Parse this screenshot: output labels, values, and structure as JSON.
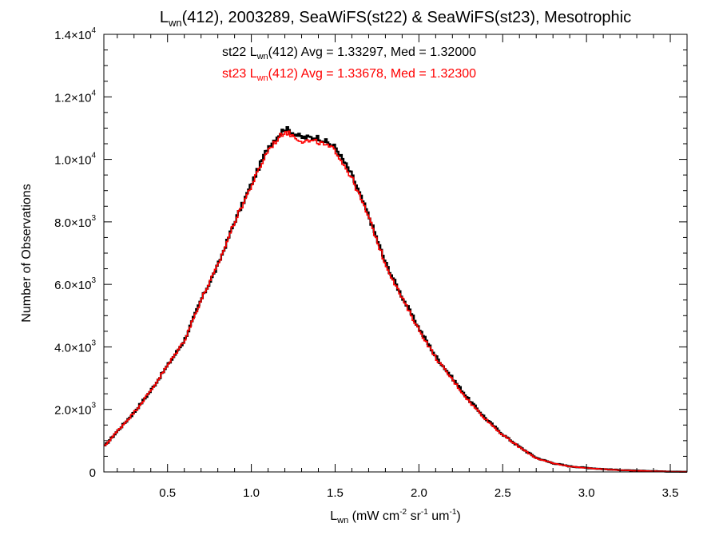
{
  "chart_data": {
    "type": "line",
    "style": "step histogram",
    "title": "(412), 2003289, SeaWiFS(st22) & SeaWiFS(st23), Mesotrophic",
    "title_prefix": "L",
    "title_sub": "wn",
    "xlabel": {
      "main": "L",
      "main_sub": "wn",
      "open": " (mW cm",
      "sup1": "-2",
      "mid": " sr",
      "sup2": "-1",
      "unit": " um",
      "sup3": "-1",
      "close": ")"
    },
    "ylabel": "Number of Observations",
    "xlim": [
      0.12,
      3.6
    ],
    "ylim": [
      0,
      14000
    ],
    "x_ticks": [
      {
        "v": 0.5,
        "label": "0.5"
      },
      {
        "v": 1.0,
        "label": "1.0"
      },
      {
        "v": 1.5,
        "label": "1.5"
      },
      {
        "v": 2.0,
        "label": "2.0"
      },
      {
        "v": 2.5,
        "label": "2.5"
      },
      {
        "v": 3.0,
        "label": "3.0"
      },
      {
        "v": 3.5,
        "label": "3.5"
      }
    ],
    "y_ticks": [
      {
        "v": 0,
        "mant": "0",
        "exp": ""
      },
      {
        "v": 2000,
        "mant": "2.0×10",
        "exp": "3"
      },
      {
        "v": 4000,
        "mant": "4.0×10",
        "exp": "3"
      },
      {
        "v": 6000,
        "mant": "6.0×10",
        "exp": "3"
      },
      {
        "v": 8000,
        "mant": "8.0×10",
        "exp": "3"
      },
      {
        "v": 10000,
        "mant": "1.0×10",
        "exp": "4"
      },
      {
        "v": 12000,
        "mant": "1.2×10",
        "exp": "4"
      },
      {
        "v": 14000,
        "mant": "1.4×10",
        "exp": "4"
      }
    ],
    "grid": false,
    "annotations": [
      {
        "pre": "st22 L",
        "sub": "wn",
        "post": "(412) Avg = 1.33297, Med = 1.32000",
        "color": "#000000"
      },
      {
        "pre": "st23 L",
        "sub": "wn",
        "post": "(412) Avg = 1.33678, Med = 1.32300",
        "color": "#ff0000"
      }
    ],
    "series": [
      {
        "id": "st22",
        "color": "#000000",
        "x": [
          0.12,
          0.2,
          0.3,
          0.4,
          0.5,
          0.6,
          0.7,
          0.8,
          0.9,
          1.0,
          1.1,
          1.2,
          1.3,
          1.4,
          1.5,
          1.6,
          1.7,
          1.8,
          1.9,
          2.0,
          2.1,
          2.2,
          2.3,
          2.4,
          2.5,
          2.6,
          2.7,
          2.8,
          2.9,
          3.0,
          3.1,
          3.2,
          3.3,
          3.4,
          3.5,
          3.6
        ],
        "y": [
          800,
          1300,
          1900,
          2600,
          3400,
          4200,
          5500,
          6600,
          8000,
          9200,
          10400,
          11000,
          10700,
          10700,
          10400,
          9500,
          8200,
          6700,
          5600,
          4600,
          3700,
          3000,
          2300,
          1700,
          1200,
          800,
          450,
          280,
          180,
          130,
          90,
          60,
          40,
          25,
          10,
          5
        ]
      },
      {
        "id": "st23",
        "color": "#ff0000",
        "x": [
          0.12,
          0.2,
          0.3,
          0.4,
          0.5,
          0.6,
          0.7,
          0.8,
          0.9,
          1.0,
          1.1,
          1.2,
          1.3,
          1.4,
          1.5,
          1.6,
          1.7,
          1.8,
          1.9,
          2.0,
          2.1,
          2.2,
          2.3,
          2.4,
          2.5,
          2.6,
          2.7,
          2.8,
          2.9,
          3.0,
          3.1,
          3.2,
          3.3,
          3.4,
          3.5,
          3.6
        ],
        "y": [
          800,
          1300,
          1900,
          2600,
          3400,
          4200,
          5500,
          6600,
          8000,
          9150,
          10300,
          10900,
          10600,
          10550,
          10300,
          9400,
          8150,
          6650,
          5550,
          4550,
          3650,
          2950,
          2250,
          1680,
          1180,
          790,
          440,
          275,
          175,
          125,
          88,
          58,
          38,
          24,
          10,
          5
        ]
      }
    ]
  }
}
